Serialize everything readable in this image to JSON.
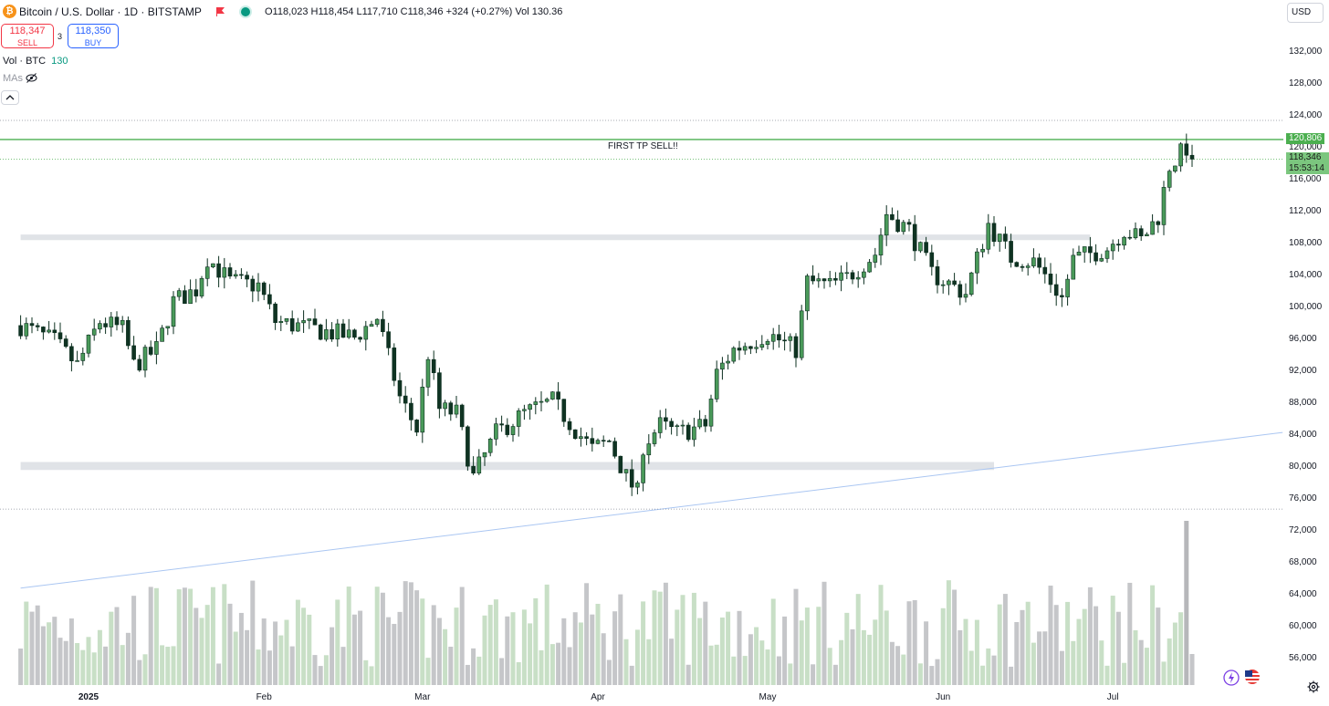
{
  "header": {
    "symbol_line": "Bitcoin / U.S. Dollar · 1D · BITSTAMP",
    "ohlc": "O118,023  H118,454  L117,710  C118,346  +324 (+0.27%)  Vol 130.36",
    "logo_glyph": "₿",
    "icons": [
      "bitcoin-logo-icon",
      "flag-icon",
      "market-open-dot-icon",
      "eye-slash-icon",
      "chevron-up-icon",
      "gear-icon"
    ]
  },
  "trade": {
    "sell_price": "118,347",
    "sell_label": "SELL",
    "spread": "3",
    "buy_price": "118,350",
    "buy_label": "BUY"
  },
  "indicators": {
    "vol_label": "Vol · BTC",
    "vol_value": "130",
    "mas_label": "MAs"
  },
  "currency": "USD",
  "colors": {
    "up": "#0b2e1f",
    "down": "#0f3322",
    "hline": "#4caf50",
    "trendline": "#aac6f2",
    "zone": "#e0e3e7",
    "vol_up": "#c8dfc6",
    "vol_down": "#c5c6c9",
    "vol_spike": "#b6b7ba"
  },
  "price_tags": {
    "tp_level": "120,806",
    "last_price": "118,346",
    "countdown": "15:53:14"
  },
  "annotation": "FIRST TP SELL!!",
  "chart_data": {
    "type": "candlestick",
    "y_axis_ticks": [
      56000,
      60000,
      64000,
      68000,
      72000,
      76000,
      80000,
      84000,
      88000,
      92000,
      96000,
      100000,
      104000,
      108000,
      112000,
      116000,
      120000,
      124000,
      128000,
      132000
    ],
    "y_axis_tick_labels": [
      "56,000",
      "60,000",
      "64,000",
      "68,000",
      "72,000",
      "76,000",
      "80,000",
      "84,000",
      "88,000",
      "92,000",
      "96,000",
      "100,000",
      "104,000",
      "108,000",
      "112,000",
      "116,000",
      "120,000",
      "124,000",
      "128,000",
      "132,000"
    ],
    "x_axis_labels": [
      "2025",
      "Feb",
      "Mar",
      "Apr",
      "May",
      "Jun",
      "Jul"
    ],
    "x_axis_dates": [
      "2025-01-01",
      "2025-02-01",
      "2025-03-01",
      "2025-04-01",
      "2025-05-01",
      "2025-06-01",
      "2025-07-01"
    ],
    "date_range": [
      "2024-12-20",
      "2025-07-15"
    ],
    "horizontal_line": {
      "price": 120806,
      "label": "FIRST TP SELL!!"
    },
    "zones": [
      {
        "from": "2024-12-20",
        "to": "2025-06-27",
        "low": 108200,
        "high": 108900
      },
      {
        "from": "2024-12-20",
        "to": "2025-06-10",
        "low": 79400,
        "high": 80400
      }
    ],
    "dotted_lines": [
      123200,
      118346,
      74500
    ],
    "trendline": {
      "from": [
        "2024-12-20",
        64600
      ],
      "to": [
        "2025-07-31",
        84100
      ]
    },
    "volume_spike": {
      "date": "2025-07-14",
      "level": 0.96
    },
    "anchors": [
      {
        "date": "2024-12-20",
        "close": 97500
      },
      {
        "date": "2024-12-26",
        "close": 95500
      },
      {
        "date": "2024-12-30",
        "close": 92500
      },
      {
        "date": "2025-01-03",
        "close": 98000
      },
      {
        "date": "2025-01-07",
        "close": 97000
      },
      {
        "date": "2025-01-09",
        "close": 92500
      },
      {
        "date": "2025-01-13",
        "close": 94500
      },
      {
        "date": "2025-01-16",
        "close": 100500
      },
      {
        "date": "2025-01-20",
        "close": 102000
      },
      {
        "date": "2025-01-22",
        "close": 106000
      },
      {
        "date": "2025-01-26",
        "close": 103000
      },
      {
        "date": "2025-01-31",
        "close": 102500
      },
      {
        "date": "2025-02-03",
        "close": 98000
      },
      {
        "date": "2025-02-10",
        "close": 97000
      },
      {
        "date": "2025-02-17",
        "close": 96000
      },
      {
        "date": "2025-02-21",
        "close": 98500
      },
      {
        "date": "2025-02-25",
        "close": 88500
      },
      {
        "date": "2025-02-28",
        "close": 84500
      },
      {
        "date": "2025-03-02",
        "close": 94000
      },
      {
        "date": "2025-03-04",
        "close": 87000
      },
      {
        "date": "2025-03-07",
        "close": 86500
      },
      {
        "date": "2025-03-10",
        "close": 78500
      },
      {
        "date": "2025-03-14",
        "close": 84000
      },
      {
        "date": "2025-03-19",
        "close": 86500
      },
      {
        "date": "2025-03-24",
        "close": 88000
      },
      {
        "date": "2025-03-28",
        "close": 84500
      },
      {
        "date": "2025-03-31",
        "close": 82000
      },
      {
        "date": "2025-04-03",
        "close": 83000
      },
      {
        "date": "2025-04-06",
        "close": 78500
      },
      {
        "date": "2025-04-08",
        "close": 76500
      },
      {
        "date": "2025-04-09",
        "close": 82500
      },
      {
        "date": "2025-04-12",
        "close": 85000
      },
      {
        "date": "2025-04-15",
        "close": 84000
      },
      {
        "date": "2025-04-20",
        "close": 85000
      },
      {
        "date": "2025-04-22",
        "close": 91500
      },
      {
        "date": "2025-04-25",
        "close": 94500
      },
      {
        "date": "2025-05-01",
        "close": 96500
      },
      {
        "date": "2025-05-06",
        "close": 94500
      },
      {
        "date": "2025-05-08",
        "close": 103000
      },
      {
        "date": "2025-05-12",
        "close": 102500
      },
      {
        "date": "2025-05-15",
        "close": 103500
      },
      {
        "date": "2025-05-20",
        "close": 106500
      },
      {
        "date": "2025-05-22",
        "close": 111500
      },
      {
        "date": "2025-05-26",
        "close": 109500
      },
      {
        "date": "2025-05-30",
        "close": 104000
      },
      {
        "date": "2025-06-05",
        "close": 101500
      },
      {
        "date": "2025-06-09",
        "close": 110200
      },
      {
        "date": "2025-06-13",
        "close": 106000
      },
      {
        "date": "2025-06-17",
        "close": 105500
      },
      {
        "date": "2025-06-20",
        "close": 103000
      },
      {
        "date": "2025-06-22",
        "close": 100900
      },
      {
        "date": "2025-06-24",
        "close": 105800
      },
      {
        "date": "2025-06-30",
        "close": 107200
      },
      {
        "date": "2025-07-03",
        "close": 109500
      },
      {
        "date": "2025-07-06",
        "close": 108200
      },
      {
        "date": "2025-07-09",
        "close": 111200
      },
      {
        "date": "2025-07-11",
        "close": 117500
      },
      {
        "date": "2025-07-14",
        "close": 119800
      },
      {
        "date": "2025-07-15",
        "close": 118346
      }
    ]
  }
}
